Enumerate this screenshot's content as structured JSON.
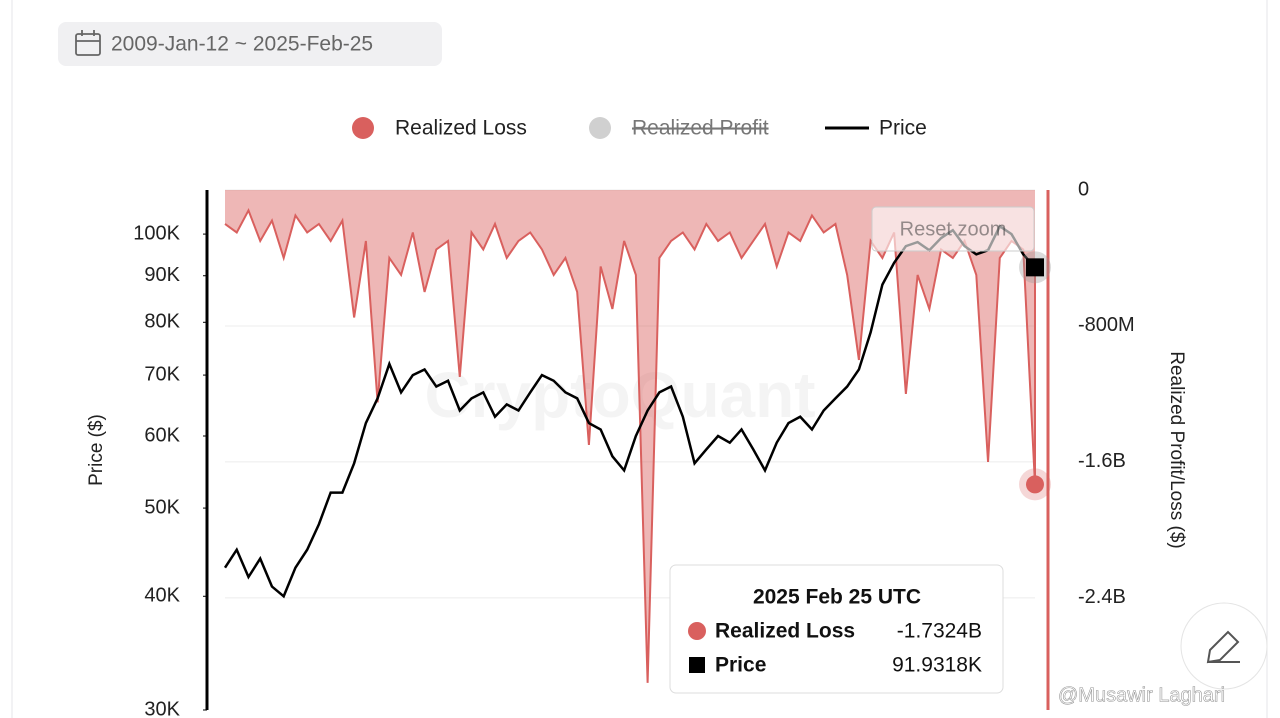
{
  "date_range": "2009-Jan-12 ~ 2025-Feb-25",
  "watermark": "CryptoQuant",
  "credit": "@Musawir Laghari",
  "reset_button": "Reset zoom",
  "chart_data": {
    "type": "line",
    "y_label": "Price ($)",
    "y2_label": "Realized Profit/Loss ($)",
    "ylim": [
      30000,
      111800
    ],
    "log_y": true,
    "yticks": [
      {
        "value": 30000,
        "label": "30K"
      },
      {
        "value": 40000,
        "label": "40K"
      },
      {
        "value": 50000,
        "label": "50K"
      },
      {
        "value": 60000,
        "label": "60K"
      },
      {
        "value": 70000,
        "label": "70K"
      },
      {
        "value": 80000,
        "label": "80K"
      },
      {
        "value": 90000,
        "label": "90K"
      },
      {
        "value": 100000,
        "label": "100K"
      }
    ],
    "y2lim": [
      0,
      -3060000000
    ],
    "y2ticks": [
      0,
      {
        "value": -800000000,
        "label": "-800M"
      },
      {
        "value": -1600000000,
        "label": "-1.6B"
      },
      {
        "value": -2400000000,
        "label": "-2.4B"
      }
    ],
    "grid": true,
    "legend": "top",
    "series": [
      {
        "name": "Realized Loss",
        "color": "#d9605e",
        "axis": "y2",
        "kind": "area",
        "values": [
          -200000000,
          -250000000,
          -120000000,
          -300000000,
          -180000000,
          -400000000,
          -150000000,
          -250000000,
          -200000000,
          -300000000,
          -180000000,
          -750000000,
          -300000000,
          -1250000000,
          -400000000,
          -500000000,
          -250000000,
          -600000000,
          -350000000,
          -300000000,
          -1100000000,
          -250000000,
          -350000000,
          -200000000,
          -400000000,
          -300000000,
          -250000000,
          -350000000,
          -500000000,
          -400000000,
          -600000000,
          -1500000000,
          -450000000,
          -700000000,
          -300000000,
          -500000000,
          -2900000000,
          -400000000,
          -300000000,
          -250000000,
          -350000000,
          -200000000,
          -300000000,
          -250000000,
          -400000000,
          -300000000,
          -200000000,
          -450000000,
          -250000000,
          -300000000,
          -150000000,
          -250000000,
          -200000000,
          -500000000,
          -1000000000,
          -300000000,
          -400000000,
          -250000000,
          -1200000000,
          -500000000,
          -700000000,
          -350000000,
          -400000000,
          -300000000,
          -500000000,
          -1600000000,
          -400000000,
          -300000000,
          -350000000,
          -1732400000
        ]
      },
      {
        "name": "Realized Profit",
        "color": "#d0d0d0",
        "hidden": true,
        "values": []
      },
      {
        "name": "Price",
        "color": "#000000",
        "kind": "line",
        "values": [
          43000,
          45000,
          42000,
          44000,
          41000,
          40000,
          43000,
          45000,
          48000,
          52000,
          52000,
          56000,
          62000,
          66000,
          72000,
          67000,
          70000,
          71000,
          68000,
          69000,
          64000,
          66000,
          67000,
          63000,
          65000,
          64000,
          67000,
          70000,
          69000,
          67000,
          66000,
          62000,
          61000,
          57000,
          55000,
          60000,
          64000,
          67000,
          68000,
          63000,
          56000,
          58000,
          60000,
          59000,
          61000,
          58000,
          55000,
          59000,
          62000,
          63000,
          61000,
          64000,
          66000,
          68000,
          71000,
          78000,
          88000,
          93000,
          97000,
          98000,
          96000,
          99000,
          101000,
          97000,
          95000,
          96000,
          102000,
          100000,
          95000,
          91931.8
        ]
      }
    ],
    "tooltip": {
      "title": "2025 Feb 25 UTC",
      "loss_label": "-1.7324B",
      "price_label": "91.9318K"
    }
  }
}
